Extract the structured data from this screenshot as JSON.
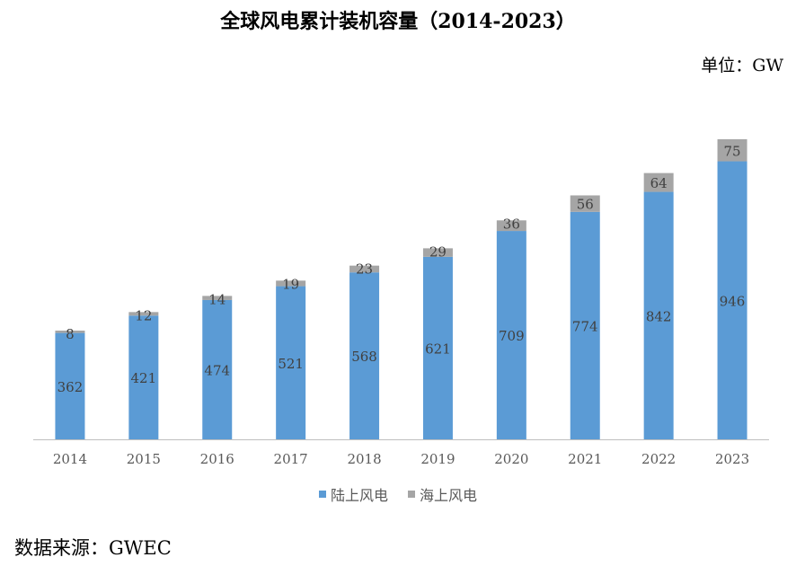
{
  "title": "全球风电累计装机容量（2014-2023）",
  "unit_label": "单位：GW",
  "source_label": "数据来源：GWEC",
  "colors": {
    "onshore": "#5b9bd5",
    "offshore": "#a5a5a5",
    "axis": "#bfbfbf",
    "tick_text": "#595959",
    "data_label": "#404040"
  },
  "chart_data": {
    "type": "bar",
    "stacked": true,
    "categories": [
      "2014",
      "2015",
      "2016",
      "2017",
      "2018",
      "2019",
      "2020",
      "2021",
      "2022",
      "2023"
    ],
    "series": [
      {
        "name": "陆上风电",
        "values": [
          362,
          421,
          474,
          521,
          568,
          621,
          709,
          774,
          842,
          946
        ]
      },
      {
        "name": "海上风电",
        "values": [
          8,
          12,
          14,
          19,
          23,
          29,
          36,
          56,
          64,
          75
        ]
      }
    ],
    "ylim": [
      0,
      1021
    ],
    "grid": false,
    "legend_position": "bottom"
  }
}
